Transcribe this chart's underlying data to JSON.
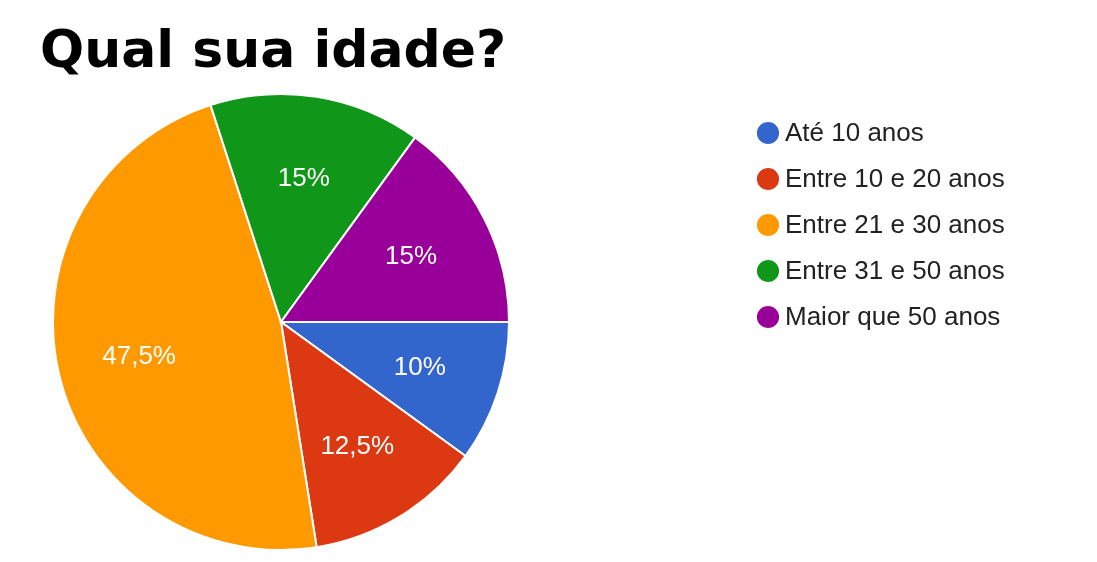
{
  "chart_data": {
    "type": "pie",
    "title": "Qual sua idade?",
    "categories": [
      "Até 10 anos",
      "Entre 10 e 20 anos",
      "Entre 21 e 30 anos",
      "Entre 31 e 50 anos",
      "Maior que 50 anos"
    ],
    "values": [
      10,
      12.5,
      47.5,
      15,
      15
    ],
    "colors": [
      "#3366cc",
      "#dc3912",
      "#ff9900",
      "#109618",
      "#990099"
    ],
    "value_labels": [
      "10%",
      "12,5%",
      "47,5%",
      "15%",
      "15%"
    ],
    "legend": "right"
  }
}
